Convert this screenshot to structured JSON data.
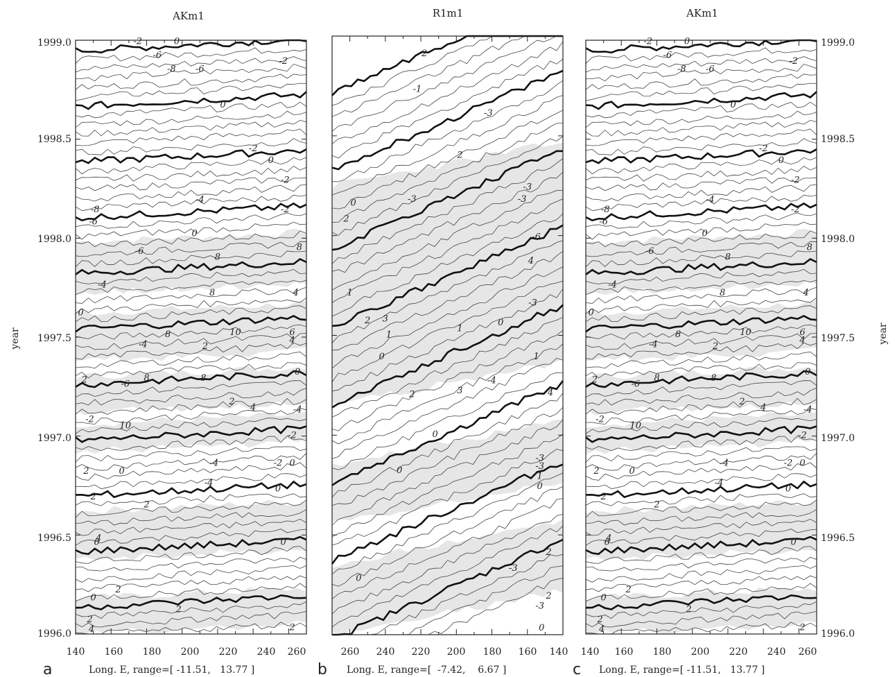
{
  "figure": {
    "y_axis_label": "year",
    "y_ticks": [
      "1999.0",
      "1998.5",
      "1998.0",
      "1997.5",
      "1997.0",
      "1996.5",
      "1996.0"
    ]
  },
  "chart_data": [
    {
      "type": "heatmap",
      "panel_letter": "a",
      "title": "AKm1",
      "xlabel": "Long. E, range=[ -11.51,   13.77 ]",
      "ylabel": "year",
      "x_ticks": [
        "140",
        "160",
        "180",
        "200",
        "220",
        "240",
        "260"
      ],
      "x_range": [
        140,
        270
      ],
      "y_range": [
        1996.0,
        1999.0
      ],
      "y_ticks": [
        1996.0,
        1996.5,
        1997.0,
        1997.5,
        1998.0,
        1998.5,
        1999.0
      ],
      "value_range": [
        -11.51,
        13.77
      ],
      "contour_labels": [
        {
          "text": "-2",
          "lon": 175,
          "year": 1998.98
        },
        {
          "text": "0",
          "lon": 197,
          "year": 1998.98
        },
        {
          "text": "-6",
          "lon": 186,
          "year": 1998.91
        },
        {
          "text": "-8",
          "lon": 194,
          "year": 1998.84
        },
        {
          "text": "-6",
          "lon": 210,
          "year": 1998.84
        },
        {
          "text": "-2",
          "lon": 257,
          "year": 1998.88
        },
        {
          "text": "0",
          "lon": 223,
          "year": 1998.66
        },
        {
          "text": "-2",
          "lon": 240,
          "year": 1998.44
        },
        {
          "text": "0",
          "lon": 250,
          "year": 1998.38
        },
        {
          "text": "-2",
          "lon": 258,
          "year": 1998.28
        },
        {
          "text": "-4",
          "lon": 210,
          "year": 1998.18
        },
        {
          "text": "-2",
          "lon": 258,
          "year": 1998.13
        },
        {
          "text": "-8",
          "lon": 151,
          "year": 1998.13
        },
        {
          "text": "-6",
          "lon": 150,
          "year": 1998.07
        },
        {
          "text": "0",
          "lon": 207,
          "year": 1998.01
        },
        {
          "text": "-6",
          "lon": 176,
          "year": 1997.92
        },
        {
          "text": "8",
          "lon": 220,
          "year": 1997.89
        },
        {
          "text": "8",
          "lon": 266,
          "year": 1997.94
        },
        {
          "text": "-4",
          "lon": 155,
          "year": 1997.75
        },
        {
          "text": "8",
          "lon": 217,
          "year": 1997.71
        },
        {
          "text": "4",
          "lon": 264,
          "year": 1997.71
        },
        {
          "text": "0",
          "lon": 143,
          "year": 1997.61
        },
        {
          "text": "8",
          "lon": 192,
          "year": 1997.5
        },
        {
          "text": "10",
          "lon": 230,
          "year": 1997.51
        },
        {
          "text": "6",
          "lon": 262,
          "year": 1997.51
        },
        {
          "text": "-4",
          "lon": 178,
          "year": 1997.45
        },
        {
          "text": "2",
          "lon": 213,
          "year": 1997.44
        },
        {
          "text": "4",
          "lon": 262,
          "year": 1997.47
        },
        {
          "text": "2",
          "lon": 145,
          "year": 1997.27
        },
        {
          "text": "-6",
          "lon": 168,
          "year": 1997.25
        },
        {
          "text": "8",
          "lon": 180,
          "year": 1997.28
        },
        {
          "text": "8",
          "lon": 212,
          "year": 1997.28
        },
        {
          "text": "0",
          "lon": 265,
          "year": 1997.31
        },
        {
          "text": "2",
          "lon": 228,
          "year": 1997.16
        },
        {
          "text": "4",
          "lon": 240,
          "year": 1997.13
        },
        {
          "text": "-2",
          "lon": 148,
          "year": 1997.07
        },
        {
          "text": "10",
          "lon": 168,
          "year": 1997.04
        },
        {
          "text": "-4",
          "lon": 265,
          "year": 1997.12
        },
        {
          "text": "-2",
          "lon": 262,
          "year": 1996.99
        },
        {
          "text": "2",
          "lon": 146,
          "year": 1996.81
        },
        {
          "text": "0",
          "lon": 166,
          "year": 1996.81
        },
        {
          "text": "-4",
          "lon": 218,
          "year": 1996.85
        },
        {
          "text": "-2",
          "lon": 254,
          "year": 1996.85
        },
        {
          "text": "0",
          "lon": 262,
          "year": 1996.85
        },
        {
          "text": "-4",
          "lon": 215,
          "year": 1996.75
        },
        {
          "text": "0",
          "lon": 254,
          "year": 1996.72
        },
        {
          "text": "2",
          "lon": 150,
          "year": 1996.68
        },
        {
          "text": "2",
          "lon": 180,
          "year": 1996.64
        },
        {
          "text": "6",
          "lon": 152,
          "year": 1996.45
        },
        {
          "text": "4",
          "lon": 153,
          "year": 1996.47
        },
        {
          "text": "0",
          "lon": 257,
          "year": 1996.45
        },
        {
          "text": "0",
          "lon": 150,
          "year": 1996.17
        },
        {
          "text": "2",
          "lon": 164,
          "year": 1996.21
        },
        {
          "text": "2",
          "lon": 148,
          "year": 1996.06
        },
        {
          "text": "2",
          "lon": 198,
          "year": 1996.11
        },
        {
          "text": "4",
          "lon": 149,
          "year": 1996.01
        },
        {
          "text": "2",
          "lon": 262,
          "year": 1996.02
        }
      ]
    },
    {
      "type": "heatmap",
      "panel_letter": "b",
      "title": "R1m1",
      "xlabel": "Long. E, range=[  -7.42,    6.67 ]",
      "ylabel": "year",
      "x_ticks": [
        "260",
        "240",
        "220",
        "200",
        "180",
        "160",
        "140"
      ],
      "x_range": [
        270,
        140
      ],
      "y_range": [
        1996.0,
        1999.0
      ],
      "y_ticks": [
        1996.0,
        1996.5,
        1997.0,
        1997.5,
        1998.0,
        1998.5,
        1999.0
      ],
      "value_range": [
        -7.42,
        6.67
      ],
      "contour_labels": [
        {
          "text": "2",
          "lon": 218,
          "year": 1998.9
        },
        {
          "text": "-1",
          "lon": 222,
          "year": 1998.72
        },
        {
          "text": "-3",
          "lon": 182,
          "year": 1998.6
        },
        {
          "text": "2",
          "lon": 198,
          "year": 1998.39
        },
        {
          "text": "0",
          "lon": 258,
          "year": 1998.15
        },
        {
          "text": "2",
          "lon": 262,
          "year": 1998.07
        },
        {
          "text": "-3",
          "lon": 225,
          "year": 1998.17
        },
        {
          "text": "-3",
          "lon": 160,
          "year": 1998.23
        },
        {
          "text": "-3",
          "lon": 163,
          "year": 1998.17
        },
        {
          "text": "-6",
          "lon": 155,
          "year": 1997.98
        },
        {
          "text": "4",
          "lon": 158,
          "year": 1997.86
        },
        {
          "text": "1",
          "lon": 260,
          "year": 1997.7
        },
        {
          "text": "-3",
          "lon": 157,
          "year": 1997.65
        },
        {
          "text": "2",
          "lon": 250,
          "year": 1997.56
        },
        {
          "text": "3",
          "lon": 240,
          "year": 1997.57
        },
        {
          "text": "0",
          "lon": 175,
          "year": 1997.55
        },
        {
          "text": "1",
          "lon": 238,
          "year": 1997.49
        },
        {
          "text": "1",
          "lon": 198,
          "year": 1997.52
        },
        {
          "text": "0",
          "lon": 242,
          "year": 1997.38
        },
        {
          "text": "1",
          "lon": 155,
          "year": 1997.38
        },
        {
          "text": "-4",
          "lon": 180,
          "year": 1997.26
        },
        {
          "text": "2",
          "lon": 225,
          "year": 1997.19
        },
        {
          "text": "3",
          "lon": 198,
          "year": 1997.21
        },
        {
          "text": "4",
          "lon": 147,
          "year": 1997.2
        },
        {
          "text": "0",
          "lon": 212,
          "year": 1996.99
        },
        {
          "text": "-3",
          "lon": 153,
          "year": 1996.87
        },
        {
          "text": "-3",
          "lon": 153,
          "year": 1996.83
        },
        {
          "text": "1",
          "lon": 153,
          "year": 1996.78
        },
        {
          "text": "0",
          "lon": 232,
          "year": 1996.81
        },
        {
          "text": "0",
          "lon": 153,
          "year": 1996.73
        },
        {
          "text": "2",
          "lon": 148,
          "year": 1996.4
        },
        {
          "text": "0",
          "lon": 255,
          "year": 1996.27
        },
        {
          "text": "-3",
          "lon": 168,
          "year": 1996.32
        },
        {
          "text": "2",
          "lon": 148,
          "year": 1996.18
        },
        {
          "text": "-3",
          "lon": 153,
          "year": 1996.13
        },
        {
          "text": "0",
          "lon": 152,
          "year": 1996.02
        }
      ]
    },
    {
      "type": "heatmap",
      "panel_letter": "c",
      "title": "AKm1",
      "xlabel": "Long. E, range=[ -11.51,   13.77 ]",
      "ylabel": "year",
      "x_ticks": [
        "140",
        "160",
        "180",
        "200",
        "220",
        "240",
        "260"
      ],
      "x_range": [
        140,
        270
      ],
      "y_range": [
        1996.0,
        1999.0
      ],
      "y_ticks": [
        1996.0,
        1996.5,
        1997.0,
        1997.5,
        1998.0,
        1998.5,
        1999.0
      ],
      "value_range": [
        -11.51,
        13.77
      ],
      "contour_labels": [
        {
          "text": "-2",
          "lon": 175,
          "year": 1998.98
        },
        {
          "text": "0",
          "lon": 197,
          "year": 1998.98
        },
        {
          "text": "-6",
          "lon": 186,
          "year": 1998.91
        },
        {
          "text": "-8",
          "lon": 194,
          "year": 1998.84
        },
        {
          "text": "-6",
          "lon": 210,
          "year": 1998.84
        },
        {
          "text": "-2",
          "lon": 257,
          "year": 1998.88
        },
        {
          "text": "0",
          "lon": 223,
          "year": 1998.66
        },
        {
          "text": "-2",
          "lon": 240,
          "year": 1998.44
        },
        {
          "text": "0",
          "lon": 250,
          "year": 1998.38
        },
        {
          "text": "-2",
          "lon": 258,
          "year": 1998.28
        },
        {
          "text": "-4",
          "lon": 210,
          "year": 1998.18
        },
        {
          "text": "-2",
          "lon": 258,
          "year": 1998.13
        },
        {
          "text": "-8",
          "lon": 151,
          "year": 1998.13
        },
        {
          "text": "-6",
          "lon": 150,
          "year": 1998.07
        },
        {
          "text": "0",
          "lon": 207,
          "year": 1998.01
        },
        {
          "text": "-6",
          "lon": 176,
          "year": 1997.92
        },
        {
          "text": "8",
          "lon": 220,
          "year": 1997.89
        },
        {
          "text": "8",
          "lon": 266,
          "year": 1997.94
        },
        {
          "text": "-4",
          "lon": 155,
          "year": 1997.75
        },
        {
          "text": "8",
          "lon": 217,
          "year": 1997.71
        },
        {
          "text": "4",
          "lon": 264,
          "year": 1997.71
        },
        {
          "text": "0",
          "lon": 143,
          "year": 1997.61
        },
        {
          "text": "8",
          "lon": 192,
          "year": 1997.5
        },
        {
          "text": "10",
          "lon": 230,
          "year": 1997.51
        },
        {
          "text": "6",
          "lon": 262,
          "year": 1997.51
        },
        {
          "text": "-4",
          "lon": 178,
          "year": 1997.45
        },
        {
          "text": "2",
          "lon": 213,
          "year": 1997.44
        },
        {
          "text": "4",
          "lon": 262,
          "year": 1997.47
        },
        {
          "text": "2",
          "lon": 145,
          "year": 1997.27
        },
        {
          "text": "-6",
          "lon": 168,
          "year": 1997.25
        },
        {
          "text": "8",
          "lon": 180,
          "year": 1997.28
        },
        {
          "text": "8",
          "lon": 212,
          "year": 1997.28
        },
        {
          "text": "0",
          "lon": 265,
          "year": 1997.31
        },
        {
          "text": "2",
          "lon": 228,
          "year": 1997.16
        },
        {
          "text": "4",
          "lon": 240,
          "year": 1997.13
        },
        {
          "text": "-2",
          "lon": 148,
          "year": 1997.07
        },
        {
          "text": "10",
          "lon": 168,
          "year": 1997.04
        },
        {
          "text": "-4",
          "lon": 265,
          "year": 1997.12
        },
        {
          "text": "-2",
          "lon": 262,
          "year": 1996.99
        },
        {
          "text": "2",
          "lon": 146,
          "year": 1996.81
        },
        {
          "text": "0",
          "lon": 166,
          "year": 1996.81
        },
        {
          "text": "-4",
          "lon": 218,
          "year": 1996.85
        },
        {
          "text": "-2",
          "lon": 254,
          "year": 1996.85
        },
        {
          "text": "0",
          "lon": 262,
          "year": 1996.85
        },
        {
          "text": "-4",
          "lon": 215,
          "year": 1996.75
        },
        {
          "text": "0",
          "lon": 254,
          "year": 1996.72
        },
        {
          "text": "2",
          "lon": 150,
          "year": 1996.68
        },
        {
          "text": "2",
          "lon": 180,
          "year": 1996.64
        },
        {
          "text": "6",
          "lon": 152,
          "year": 1996.45
        },
        {
          "text": "4",
          "lon": 153,
          "year": 1996.47
        },
        {
          "text": "0",
          "lon": 257,
          "year": 1996.45
        },
        {
          "text": "0",
          "lon": 150,
          "year": 1996.17
        },
        {
          "text": "2",
          "lon": 164,
          "year": 1996.21
        },
        {
          "text": "2",
          "lon": 148,
          "year": 1996.06
        },
        {
          "text": "2",
          "lon": 198,
          "year": 1996.11
        },
        {
          "text": "4",
          "lon": 149,
          "year": 1996.01
        },
        {
          "text": "2",
          "lon": 262,
          "year": 1996.02
        }
      ]
    }
  ]
}
